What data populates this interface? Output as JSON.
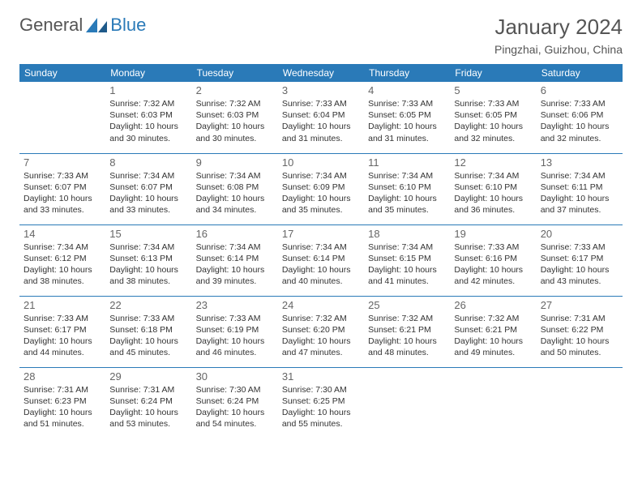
{
  "logo": {
    "word1": "General",
    "word2": "Blue"
  },
  "title": "January 2024",
  "location": "Pingzhai, Guizhou, China",
  "colors": {
    "header_bg": "#2a7ab8",
    "header_fg": "#ffffff",
    "rule": "#2a7ab8",
    "text": "#333333",
    "muted": "#555555",
    "page_bg": "#ffffff"
  },
  "columns": [
    "Sunday",
    "Monday",
    "Tuesday",
    "Wednesday",
    "Thursday",
    "Friday",
    "Saturday"
  ],
  "weeks": [
    [
      null,
      {
        "n": "1",
        "sr": "7:32 AM",
        "ss": "6:03 PM",
        "dl": "10 hours and 30 minutes."
      },
      {
        "n": "2",
        "sr": "7:32 AM",
        "ss": "6:03 PM",
        "dl": "10 hours and 30 minutes."
      },
      {
        "n": "3",
        "sr": "7:33 AM",
        "ss": "6:04 PM",
        "dl": "10 hours and 31 minutes."
      },
      {
        "n": "4",
        "sr": "7:33 AM",
        "ss": "6:05 PM",
        "dl": "10 hours and 31 minutes."
      },
      {
        "n": "5",
        "sr": "7:33 AM",
        "ss": "6:05 PM",
        "dl": "10 hours and 32 minutes."
      },
      {
        "n": "6",
        "sr": "7:33 AM",
        "ss": "6:06 PM",
        "dl": "10 hours and 32 minutes."
      }
    ],
    [
      {
        "n": "7",
        "sr": "7:33 AM",
        "ss": "6:07 PM",
        "dl": "10 hours and 33 minutes."
      },
      {
        "n": "8",
        "sr": "7:34 AM",
        "ss": "6:07 PM",
        "dl": "10 hours and 33 minutes."
      },
      {
        "n": "9",
        "sr": "7:34 AM",
        "ss": "6:08 PM",
        "dl": "10 hours and 34 minutes."
      },
      {
        "n": "10",
        "sr": "7:34 AM",
        "ss": "6:09 PM",
        "dl": "10 hours and 35 minutes."
      },
      {
        "n": "11",
        "sr": "7:34 AM",
        "ss": "6:10 PM",
        "dl": "10 hours and 35 minutes."
      },
      {
        "n": "12",
        "sr": "7:34 AM",
        "ss": "6:10 PM",
        "dl": "10 hours and 36 minutes."
      },
      {
        "n": "13",
        "sr": "7:34 AM",
        "ss": "6:11 PM",
        "dl": "10 hours and 37 minutes."
      }
    ],
    [
      {
        "n": "14",
        "sr": "7:34 AM",
        "ss": "6:12 PM",
        "dl": "10 hours and 38 minutes."
      },
      {
        "n": "15",
        "sr": "7:34 AM",
        "ss": "6:13 PM",
        "dl": "10 hours and 38 minutes."
      },
      {
        "n": "16",
        "sr": "7:34 AM",
        "ss": "6:14 PM",
        "dl": "10 hours and 39 minutes."
      },
      {
        "n": "17",
        "sr": "7:34 AM",
        "ss": "6:14 PM",
        "dl": "10 hours and 40 minutes."
      },
      {
        "n": "18",
        "sr": "7:34 AM",
        "ss": "6:15 PM",
        "dl": "10 hours and 41 minutes."
      },
      {
        "n": "19",
        "sr": "7:33 AM",
        "ss": "6:16 PM",
        "dl": "10 hours and 42 minutes."
      },
      {
        "n": "20",
        "sr": "7:33 AM",
        "ss": "6:17 PM",
        "dl": "10 hours and 43 minutes."
      }
    ],
    [
      {
        "n": "21",
        "sr": "7:33 AM",
        "ss": "6:17 PM",
        "dl": "10 hours and 44 minutes."
      },
      {
        "n": "22",
        "sr": "7:33 AM",
        "ss": "6:18 PM",
        "dl": "10 hours and 45 minutes."
      },
      {
        "n": "23",
        "sr": "7:33 AM",
        "ss": "6:19 PM",
        "dl": "10 hours and 46 minutes."
      },
      {
        "n": "24",
        "sr": "7:32 AM",
        "ss": "6:20 PM",
        "dl": "10 hours and 47 minutes."
      },
      {
        "n": "25",
        "sr": "7:32 AM",
        "ss": "6:21 PM",
        "dl": "10 hours and 48 minutes."
      },
      {
        "n": "26",
        "sr": "7:32 AM",
        "ss": "6:21 PM",
        "dl": "10 hours and 49 minutes."
      },
      {
        "n": "27",
        "sr": "7:31 AM",
        "ss": "6:22 PM",
        "dl": "10 hours and 50 minutes."
      }
    ],
    [
      {
        "n": "28",
        "sr": "7:31 AM",
        "ss": "6:23 PM",
        "dl": "10 hours and 51 minutes."
      },
      {
        "n": "29",
        "sr": "7:31 AM",
        "ss": "6:24 PM",
        "dl": "10 hours and 53 minutes."
      },
      {
        "n": "30",
        "sr": "7:30 AM",
        "ss": "6:24 PM",
        "dl": "10 hours and 54 minutes."
      },
      {
        "n": "31",
        "sr": "7:30 AM",
        "ss": "6:25 PM",
        "dl": "10 hours and 55 minutes."
      },
      null,
      null,
      null
    ]
  ],
  "labels": {
    "sunrise": "Sunrise:",
    "sunset": "Sunset:",
    "daylight": "Daylight:"
  }
}
